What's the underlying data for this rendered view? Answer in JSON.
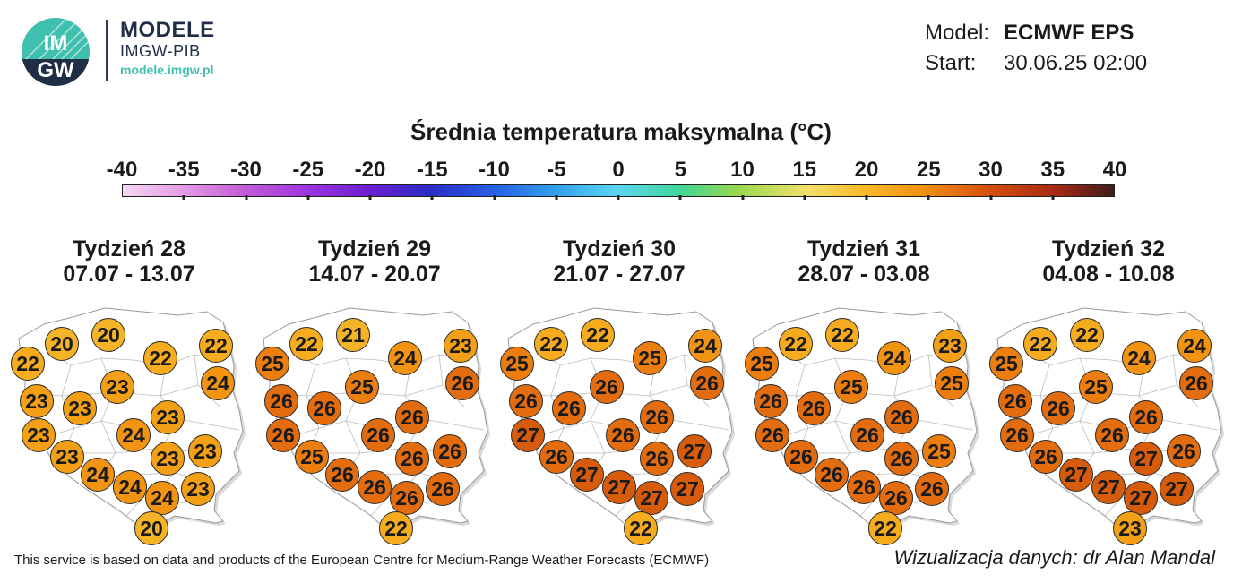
{
  "header": {
    "brand_top": "MODELE",
    "brand_mid": "IMGW-PIB",
    "brand_url": "modele.imgw.pl",
    "logo_text": "IMGW",
    "model_label": "Model:",
    "model_value": "ECMWF EPS",
    "start_label": "Start:",
    "start_value": "30.06.25 02:00"
  },
  "title": "Średnia temperatura maksymalna (°C)",
  "scale": {
    "ticks": [
      "-40",
      "-35",
      "-30",
      "-25",
      "-20",
      "-15",
      "-10",
      "-5",
      "0",
      "5",
      "10",
      "15",
      "20",
      "25",
      "30",
      "35",
      "40"
    ],
    "min": -40,
    "max": 40
  },
  "weeks": [
    {
      "label": "Tydzień 28",
      "dates": "07.07 - 13.07",
      "values": [
        20,
        20,
        22,
        22,
        22,
        23,
        24,
        23,
        23,
        23,
        23,
        24,
        23,
        23,
        23,
        24,
        24,
        23,
        24,
        20
      ]
    },
    {
      "label": "Tydzień 29",
      "dates": "14.07 - 20.07",
      "values": [
        21,
        22,
        23,
        25,
        24,
        25,
        26,
        26,
        26,
        26,
        26,
        26,
        26,
        25,
        26,
        26,
        26,
        26,
        26,
        22
      ]
    },
    {
      "label": "Tydzień 30",
      "dates": "21.07 - 27.07",
      "values": [
        22,
        22,
        24,
        25,
        25,
        26,
        26,
        26,
        26,
        26,
        27,
        26,
        26,
        26,
        27,
        27,
        27,
        27,
        27,
        22
      ]
    },
    {
      "label": "Tydzień 31",
      "dates": "28.07 - 03.08",
      "values": [
        22,
        22,
        23,
        25,
        24,
        25,
        25,
        26,
        26,
        26,
        26,
        26,
        26,
        26,
        25,
        26,
        26,
        26,
        26,
        22
      ]
    },
    {
      "label": "Tydzień 32",
      "dates": "04.08 - 10.08",
      "values": [
        22,
        22,
        24,
        25,
        24,
        25,
        26,
        26,
        26,
        26,
        26,
        26,
        27,
        26,
        26,
        27,
        27,
        27,
        27,
        23
      ]
    }
  ],
  "footer": "This service is based on data and products of the European Centre for Medium-Range Weather Forecasts (ECMWF)",
  "credit": "Wizualizacja danych: dr Alan Mandal"
}
